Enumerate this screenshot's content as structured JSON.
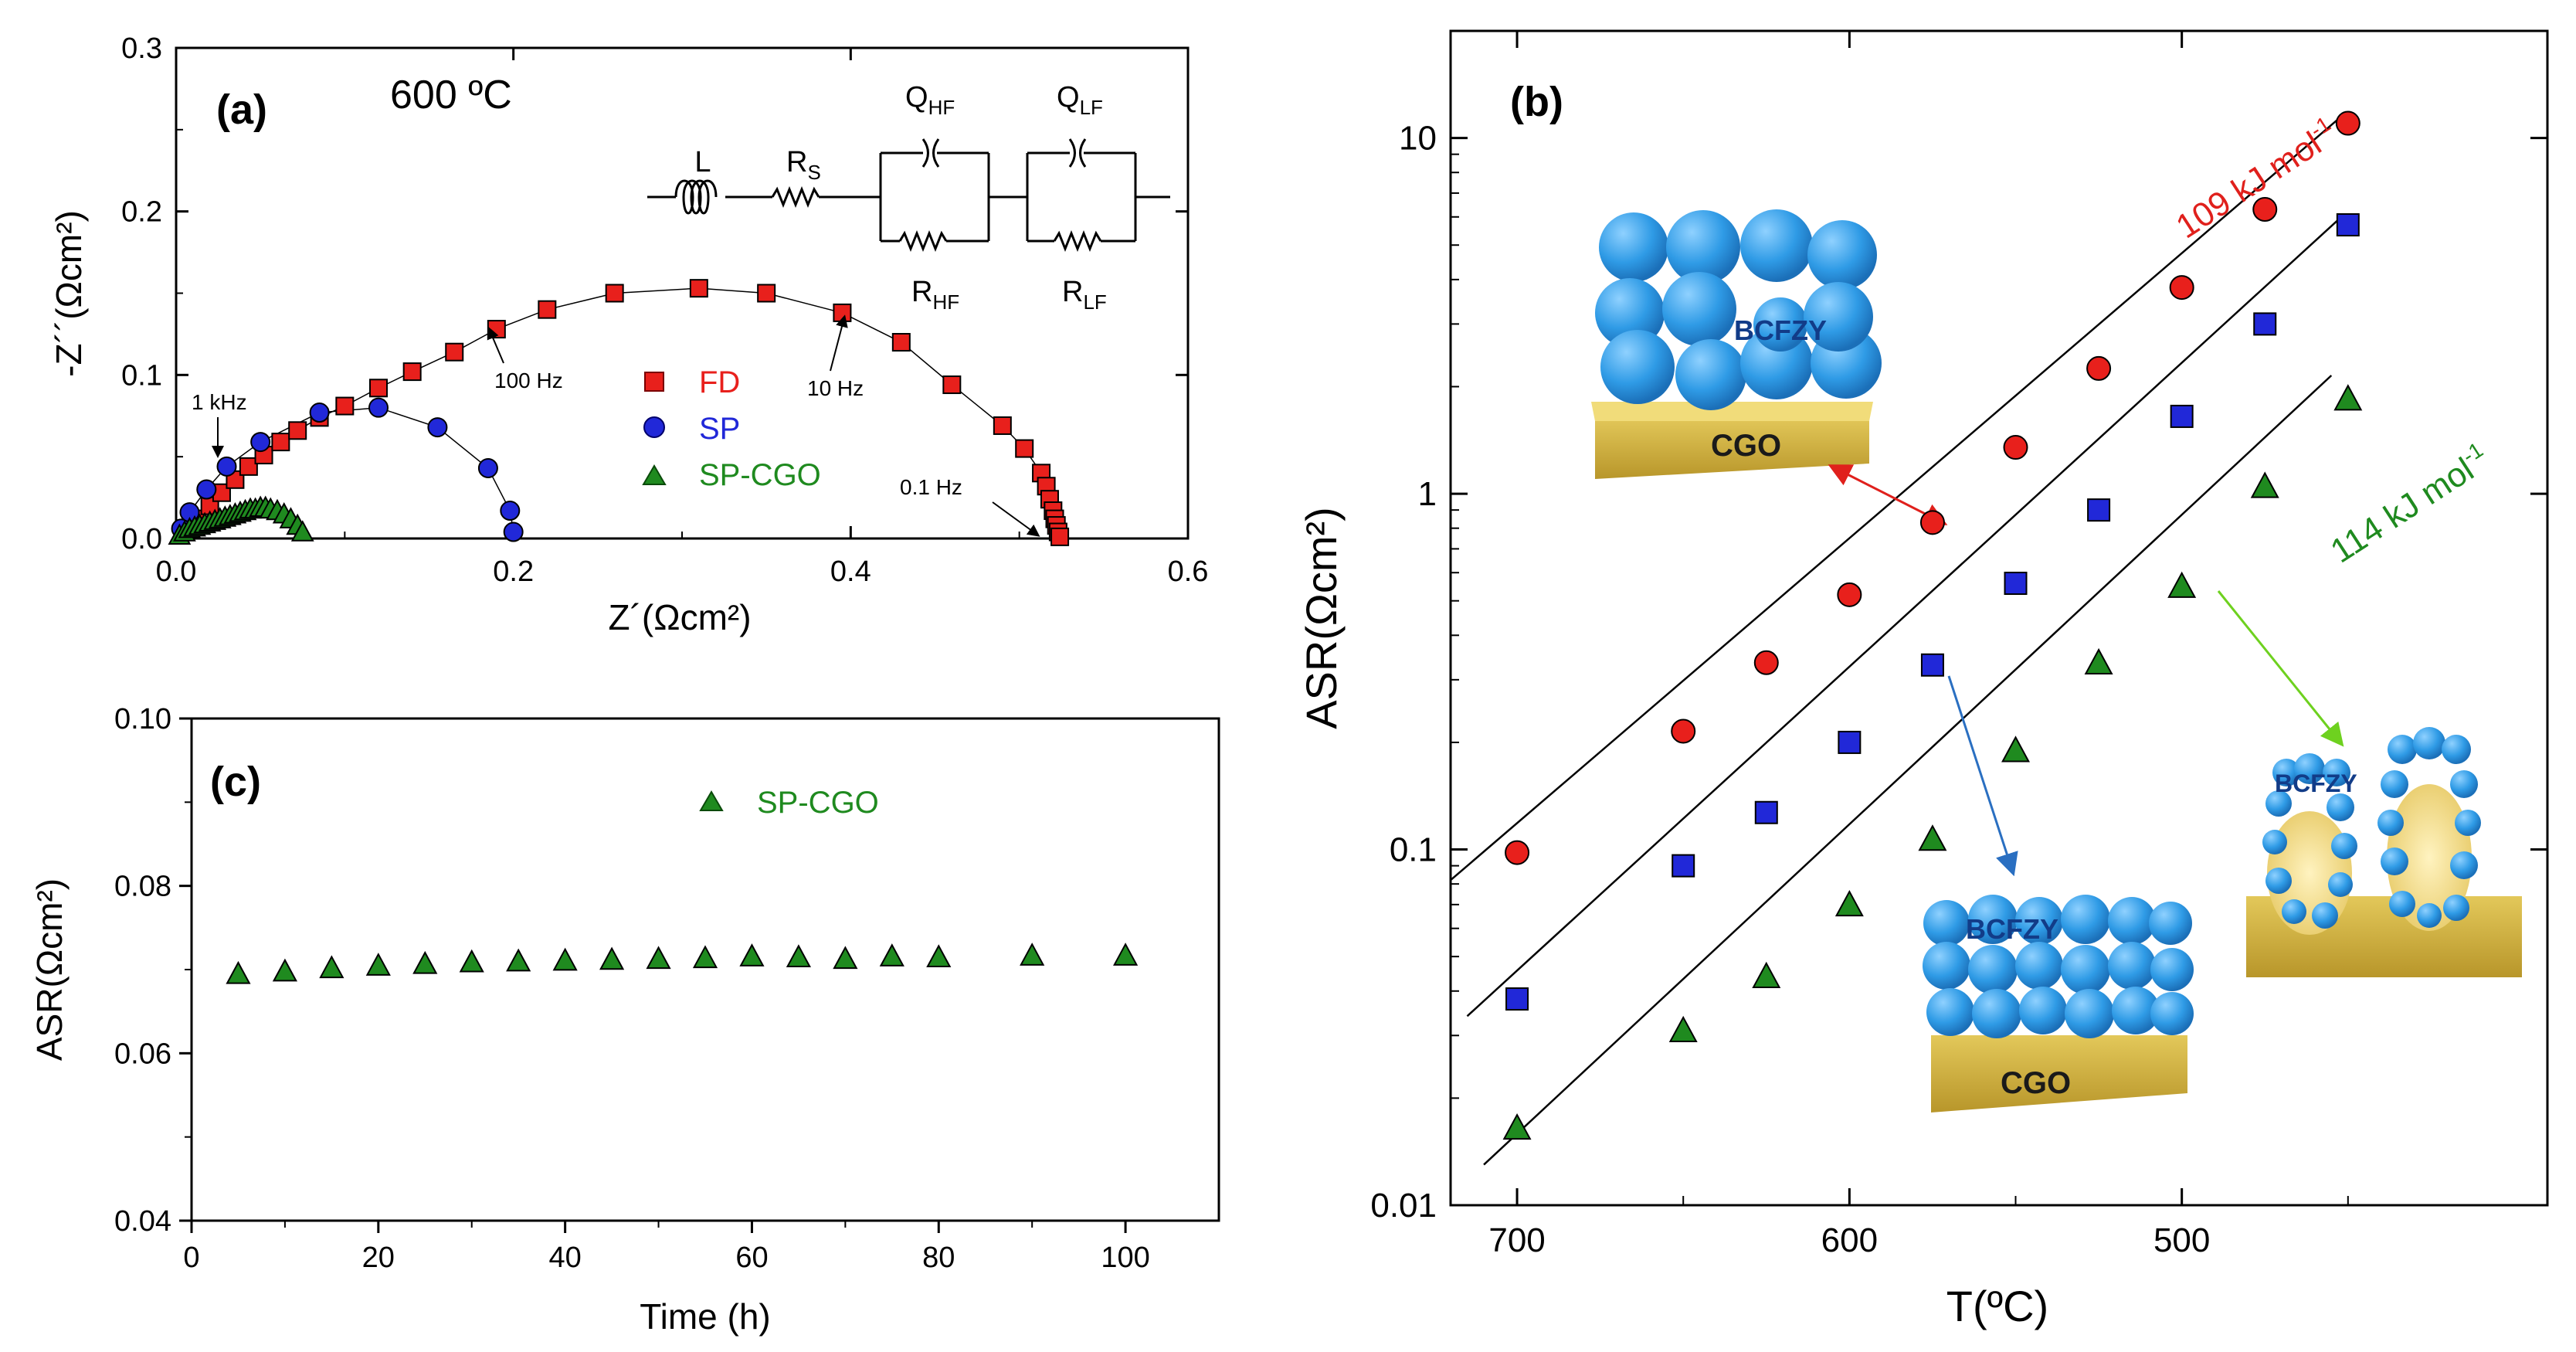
{
  "colors": {
    "fd": "#e8201c",
    "sp": "#2128d8",
    "spcgo": "#1f8a1f",
    "axis": "#000000",
    "bcfzy": "#2f9be6",
    "cgo": "#d4b341",
    "ann_red": "#e0201c",
    "ann_blue": "#2a6fc1",
    "ann_green": "#6ed11f"
  },
  "chart_data": [
    {
      "id": "a",
      "type": "scatter",
      "panel_label": "(a)",
      "title": "600 ºC",
      "xlabel": "Z´(Ωcm²)",
      "ylabel": "-Z´´(Ωcm²)",
      "xlim": [
        0.0,
        0.6
      ],
      "ylim": [
        0.0,
        0.3
      ],
      "xticks": [
        "0.0",
        "0.2",
        "0.4",
        "0.6"
      ],
      "yticks": [
        "0.0",
        "0.1",
        "0.2",
        "0.3"
      ],
      "legend": {
        "position": "center-right",
        "entries": [
          "FD",
          "SP",
          "SP-CGO"
        ]
      },
      "series": [
        {
          "name": "FD",
          "marker": "square",
          "color_key": "fd",
          "x": [
            0.005,
            0.012,
            0.02,
            0.027,
            0.035,
            0.043,
            0.052,
            0.062,
            0.072,
            0.085,
            0.1,
            0.12,
            0.14,
            0.165,
            0.19,
            0.22,
            0.26,
            0.31,
            0.35,
            0.395,
            0.43,
            0.46,
            0.49,
            0.503,
            0.513,
            0.516,
            0.518,
            0.52,
            0.521,
            0.522,
            0.523,
            0.524
          ],
          "y": [
            0.004,
            0.012,
            0.02,
            0.028,
            0.036,
            0.044,
            0.051,
            0.059,
            0.066,
            0.074,
            0.081,
            0.092,
            0.102,
            0.114,
            0.128,
            0.14,
            0.15,
            0.153,
            0.15,
            0.138,
            0.12,
            0.094,
            0.069,
            0.055,
            0.04,
            0.032,
            0.024,
            0.017,
            0.012,
            0.008,
            0.004,
            0.001
          ]
        },
        {
          "name": "SP",
          "marker": "circle",
          "color_key": "sp",
          "x": [
            0.003,
            0.008,
            0.018,
            0.03,
            0.05,
            0.085,
            0.12,
            0.155,
            0.185,
            0.198,
            0.2
          ],
          "y": [
            0.006,
            0.016,
            0.03,
            0.044,
            0.059,
            0.077,
            0.08,
            0.068,
            0.043,
            0.017,
            0.004
          ]
        },
        {
          "name": "SP-CGO",
          "marker": "triangle",
          "color_key": "spcgo",
          "x": [
            0.002,
            0.005,
            0.008,
            0.011,
            0.014,
            0.017,
            0.02,
            0.023,
            0.026,
            0.029,
            0.032,
            0.035,
            0.038,
            0.041,
            0.044,
            0.047,
            0.05,
            0.053,
            0.056,
            0.06,
            0.064,
            0.068,
            0.072,
            0.075
          ],
          "y": [
            0.002,
            0.004,
            0.006,
            0.007,
            0.008,
            0.009,
            0.01,
            0.011,
            0.012,
            0.013,
            0.014,
            0.015,
            0.016,
            0.017,
            0.018,
            0.018,
            0.019,
            0.019,
            0.018,
            0.017,
            0.015,
            0.012,
            0.008,
            0.004
          ]
        }
      ],
      "annotations": [
        {
          "text": "1 kHz",
          "x": 0.022,
          "y": 0.045
        },
        {
          "text": "100 Hz",
          "x": 0.185,
          "y": 0.12
        },
        {
          "text": "10 Hz",
          "x": 0.395,
          "y": 0.135
        },
        {
          "text": "0.1 Hz",
          "x": 0.515,
          "y": 0.008
        }
      ],
      "circuit": {
        "inductor": "L",
        "series_resistor": "R",
        "series_resistor_sub": "S",
        "q_hf": "Q",
        "q_hf_sub": "HF",
        "q_lf": "Q",
        "q_lf_sub": "LF",
        "r_hf": "R",
        "r_hf_sub": "HF",
        "r_lf": "R",
        "r_lf_sub": "LF"
      }
    },
    {
      "id": "b",
      "type": "scatter",
      "panel_label": "(b)",
      "scale": "log",
      "xlabel": "T(ºC)",
      "ylabel": "ASR(Ωcm²)",
      "xlim": [
        720,
        390
      ],
      "ylim": [
        0.01,
        20
      ],
      "xticks": [
        {
          "value": 700,
          "label": "700"
        },
        {
          "value": 600,
          "label": "600"
        },
        {
          "value": 500,
          "label": "500"
        }
      ],
      "yticks": [
        {
          "value": 0.01,
          "label": "0.01"
        },
        {
          "value": 0.1,
          "label": "0.1"
        },
        {
          "value": 1,
          "label": "1"
        },
        {
          "value": 10,
          "label": "10"
        }
      ],
      "x": [
        700,
        650,
        625,
        600,
        575,
        550,
        525,
        500,
        475,
        450
      ],
      "series": [
        {
          "name": "FD",
          "marker": "circle",
          "color_key": "fd",
          "values": [
            0.098,
            0.215,
            0.335,
            0.52,
            0.83,
            1.35,
            2.25,
            3.8,
            6.3,
            11.0
          ]
        },
        {
          "name": "SP",
          "marker": "square",
          "color_key": "sp",
          "values": [
            0.038,
            0.09,
            0.127,
            0.2,
            0.33,
            0.56,
            0.9,
            1.65,
            3.0,
            5.7
          ]
        },
        {
          "name": "SP-CGO",
          "marker": "triangle",
          "color_key": "spcgo",
          "values": [
            0.0165,
            0.031,
            0.044,
            0.07,
            0.107,
            0.19,
            0.335,
            0.55,
            1.05,
            1.85
          ]
        }
      ],
      "fits": [
        {
          "color_key": "axis",
          "x": [
            720,
            452
          ],
          "y": [
            0.082,
            11.5
          ]
        },
        {
          "color_key": "axis",
          "x": [
            715,
            452
          ],
          "y": [
            0.034,
            6.0
          ]
        },
        {
          "color_key": "axis",
          "x": [
            710,
            455
          ],
          "y": [
            0.013,
            2.15
          ]
        }
      ],
      "activation_labels": [
        {
          "text": "109 kJ mol",
          "sup": "-1",
          "color_key": "fd"
        },
        {
          "text": "114 kJ mol",
          "sup": "-1",
          "color_key": "spcgo"
        }
      ],
      "illustrations": [
        {
          "electrode": "BCFZY",
          "substrate": "CGO"
        },
        {
          "electrode": "BCFZY",
          "substrate": "CGO"
        },
        {
          "electrode": "BCFZY",
          "substrate": ""
        }
      ]
    },
    {
      "id": "c",
      "type": "scatter",
      "panel_label": "(c)",
      "xlabel": "Time (h)",
      "ylabel": "ASR(Ωcm²)",
      "xlim": [
        0,
        110
      ],
      "ylim": [
        0.04,
        0.1
      ],
      "xticks": [
        "0",
        "20",
        "40",
        "60",
        "80",
        "100"
      ],
      "yticks": [
        "0.04",
        "0.06",
        "0.08",
        "0.10"
      ],
      "legend": {
        "position": "top-center",
        "entries": [
          "SP-CGO"
        ]
      },
      "series": [
        {
          "name": "SP-CGO",
          "marker": "triangle",
          "color_key": "spcgo",
          "x": [
            5,
            10,
            15,
            20,
            25,
            30,
            35,
            40,
            45,
            50,
            55,
            60,
            65,
            70,
            75,
            80,
            90,
            100
          ],
          "y": [
            0.0695,
            0.0698,
            0.0702,
            0.0705,
            0.0707,
            0.0709,
            0.071,
            0.0711,
            0.0712,
            0.0713,
            0.0714,
            0.0716,
            0.0715,
            0.0713,
            0.0716,
            0.0715,
            0.0717,
            0.0717
          ]
        }
      ]
    }
  ]
}
